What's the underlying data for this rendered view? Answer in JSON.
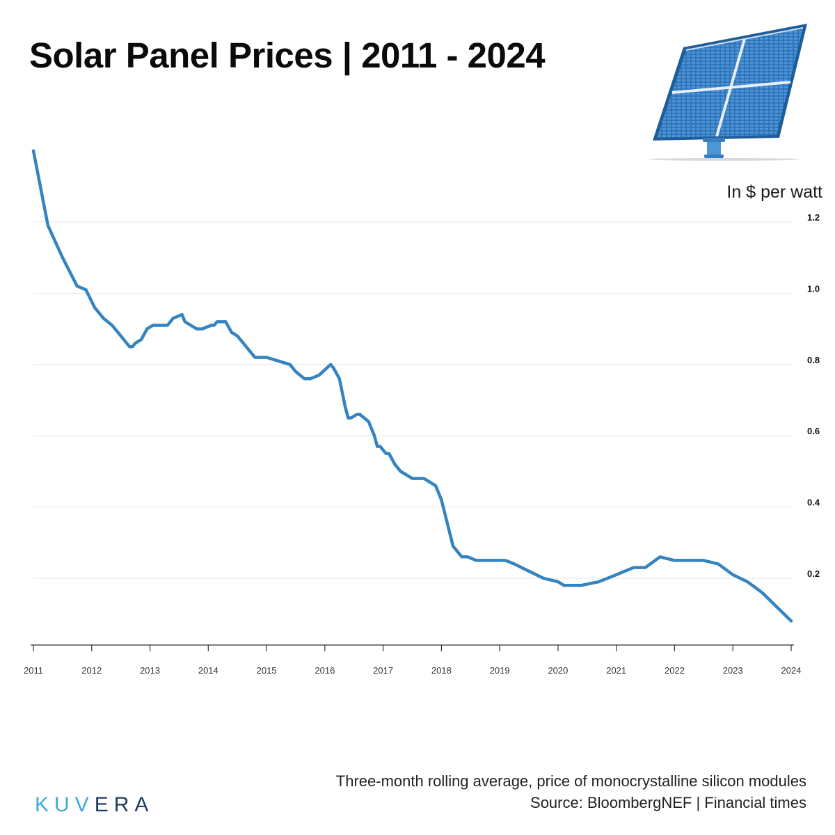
{
  "header": {
    "title": "Solar Panel Prices | 2011 - 2024",
    "unit_label": "In $ per watt"
  },
  "footer": {
    "note": "Three-month rolling average, price of monocrystalline silicon modules",
    "source": "Source: BloombergNEF | Financial times",
    "brand_part1": "KUV",
    "brand_part2": "ERA"
  },
  "colors": {
    "line": "#3584c0",
    "grid": "#e6e6e6",
    "axis": "#333333",
    "brand_light": "#3fa9d8",
    "brand_dark": "#1c3d5e"
  },
  "icons": {
    "illustration": "solar-panel-icon"
  },
  "chart_data": {
    "type": "line",
    "title": "Solar Panel Prices | 2011 - 2024",
    "xlabel": "",
    "ylabel": "In $ per watt",
    "xlim": [
      2011,
      2024
    ],
    "ylim": [
      0.0,
      1.43
    ],
    "y_ticks": [
      0.2,
      0.4,
      0.6,
      0.8,
      1.0,
      1.2
    ],
    "y_tick_labels": [
      "0.2",
      "0.4",
      "0.6",
      "0.8",
      "1.0",
      "1.2"
    ],
    "x_ticks": [
      2011,
      2012,
      2013,
      2014,
      2015,
      2016,
      2017,
      2018,
      2019,
      2020,
      2021,
      2022,
      2023,
      2024
    ],
    "x_tick_labels": [
      "2011",
      "2012",
      "2013",
      "2014",
      "2015",
      "2016",
      "2017",
      "2018",
      "2019",
      "2020",
      "2021",
      "2022",
      "2023",
      "2024"
    ],
    "grid": true,
    "y_axis_side": "right",
    "series": [
      {
        "x": [
          2011.0,
          2011.25,
          2011.5,
          2011.75,
          2011.9,
          2012.05,
          2012.2,
          2012.35,
          2012.5,
          2012.6,
          2012.65,
          2012.7,
          2012.75,
          2012.85,
          2012.95,
          2013.05,
          2013.15,
          2013.3,
          2013.4,
          2013.55,
          2013.6,
          2013.7,
          2013.8,
          2013.9,
          2014.05,
          2014.1,
          2014.15,
          2014.3,
          2014.4,
          2014.5,
          2014.6,
          2014.8,
          2015.0,
          2015.2,
          2015.4,
          2015.5,
          2015.65,
          2015.75,
          2015.9,
          2016.1,
          2016.15,
          2016.25,
          2016.35,
          2016.4,
          2016.45,
          2016.55,
          2016.6,
          2016.75,
          2016.85,
          2016.9,
          2016.95,
          2017.05,
          2017.1,
          2017.2,
          2017.3,
          2017.5,
          2017.7,
          2017.8,
          2017.9,
          2018.0,
          2018.2,
          2018.35,
          2018.45,
          2018.6,
          2018.75,
          2019.0,
          2019.1,
          2019.25,
          2019.5,
          2019.75,
          2020.0,
          2020.1,
          2020.4,
          2020.7,
          2021.0,
          2021.3,
          2021.5,
          2021.75,
          2022.0,
          2022.25,
          2022.5,
          2022.75,
          2023.0,
          2023.25,
          2023.5,
          2023.75,
          2024.0
        ],
        "y": [
          1.4,
          1.19,
          1.1,
          1.02,
          1.01,
          0.96,
          0.93,
          0.91,
          0.88,
          0.86,
          0.85,
          0.85,
          0.86,
          0.87,
          0.9,
          0.91,
          0.91,
          0.91,
          0.93,
          0.94,
          0.92,
          0.91,
          0.9,
          0.9,
          0.91,
          0.91,
          0.92,
          0.92,
          0.89,
          0.88,
          0.86,
          0.82,
          0.82,
          0.81,
          0.8,
          0.78,
          0.76,
          0.76,
          0.77,
          0.8,
          0.79,
          0.76,
          0.68,
          0.65,
          0.65,
          0.66,
          0.66,
          0.64,
          0.6,
          0.57,
          0.57,
          0.55,
          0.55,
          0.52,
          0.5,
          0.48,
          0.48,
          0.47,
          0.46,
          0.42,
          0.29,
          0.26,
          0.26,
          0.25,
          0.25,
          0.25,
          0.25,
          0.24,
          0.22,
          0.2,
          0.19,
          0.18,
          0.18,
          0.19,
          0.21,
          0.23,
          0.23,
          0.26,
          0.25,
          0.25,
          0.25,
          0.24,
          0.21,
          0.19,
          0.16,
          0.12,
          0.08
        ]
      }
    ]
  }
}
